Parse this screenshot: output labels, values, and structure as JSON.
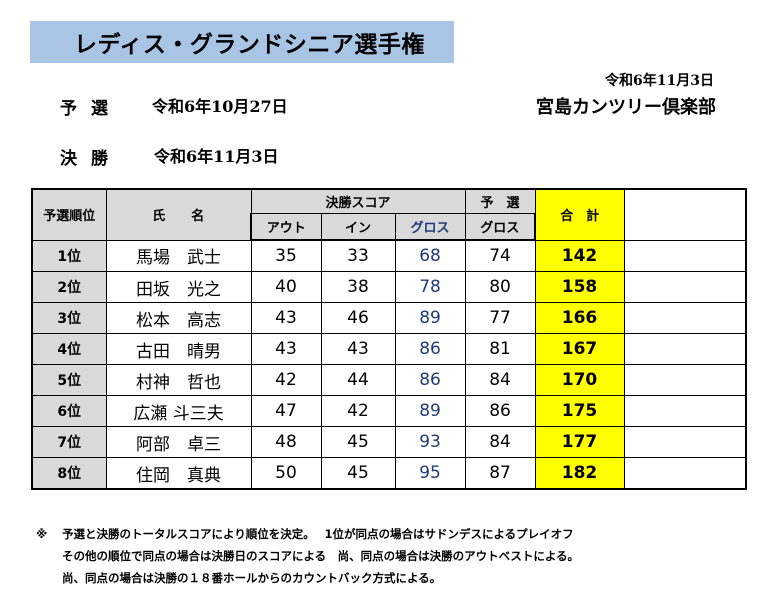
{
  "title": "レディス・グランドシニア選手権",
  "header_date": "令和6年11月3日",
  "club": "宮島カンツリー倶楽部",
  "schedule": [
    {
      "label": "予選",
      "date": "令和6年10月27日"
    },
    {
      "label": "決勝",
      "date": "令和6年11月3日"
    }
  ],
  "table": {
    "headers": {
      "rank": "予選順位",
      "name": "氏　　名",
      "final_score": "決勝スコア",
      "prelim": "予　選",
      "total": "合　計",
      "out": "アウト",
      "in": "イン",
      "gross": "グロス",
      "prelim_gross": "グロス"
    },
    "rows": [
      {
        "rank": "1位",
        "name": "馬場　武士",
        "out": "35",
        "in": "33",
        "gross": "68",
        "prelim": "74",
        "total": "142"
      },
      {
        "rank": "2位",
        "name": "田坂　光之",
        "out": "40",
        "in": "38",
        "gross": "78",
        "prelim": "80",
        "total": "158"
      },
      {
        "rank": "3位",
        "name": "松本　高志",
        "out": "43",
        "in": "46",
        "gross": "89",
        "prelim": "77",
        "total": "166"
      },
      {
        "rank": "4位",
        "name": "古田　晴男",
        "out": "43",
        "in": "43",
        "gross": "86",
        "prelim": "81",
        "total": "167"
      },
      {
        "rank": "5位",
        "name": "村神　哲也",
        "out": "42",
        "in": "44",
        "gross": "86",
        "prelim": "84",
        "total": "170"
      },
      {
        "rank": "6位",
        "name": "広瀬 斗三夫",
        "out": "47",
        "in": "42",
        "gross": "89",
        "prelim": "86",
        "total": "175"
      },
      {
        "rank": "7位",
        "name": "阿部　卓三",
        "out": "48",
        "in": "45",
        "gross": "93",
        "prelim": "84",
        "total": "177"
      },
      {
        "rank": "8位",
        "name": "住岡　真典",
        "out": "50",
        "in": "45",
        "gross": "95",
        "prelim": "87",
        "total": "182"
      }
    ]
  },
  "notes": {
    "mark": "※",
    "lines": [
      "予選と決勝のトータルスコアにより順位を決定。　 1位が同点の場合はサドンデスによるプレイオフ",
      "その他の順位で同点の場合は決勝日のスコアによる　尚、同点の場合は決勝のアウトベストによる。",
      "尚、同点の場合は決勝の１８番ホールからのカウントバック方式による。"
    ]
  },
  "colors": {
    "title_bg": "#a9c5e6",
    "header_bg": "#d9d9d9",
    "total_bg": "#ffff00",
    "gross_text": "#1f3a7a"
  }
}
